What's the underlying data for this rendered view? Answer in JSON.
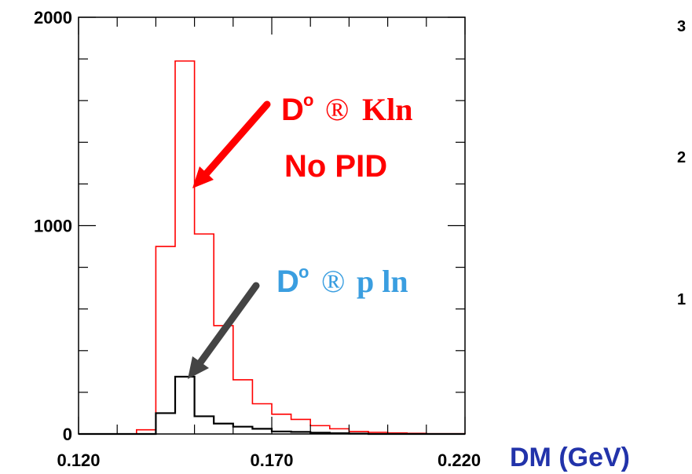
{
  "chart_data": {
    "type": "bar",
    "title": "",
    "xlabel": "DM (GeV)",
    "ylabel": "",
    "xlim": [
      0.12,
      0.22
    ],
    "ylim": [
      0,
      2000
    ],
    "x_tick_labels": [
      "0.120",
      "0.170",
      "0.220"
    ],
    "y_tick_labels": [
      "0",
      "1000",
      "2000"
    ],
    "bin_edges": [
      0.12,
      0.125,
      0.13,
      0.135,
      0.14,
      0.145,
      0.15,
      0.155,
      0.16,
      0.165,
      0.17,
      0.175,
      0.18,
      0.185,
      0.19,
      0.195,
      0.2,
      0.205,
      0.21,
      0.215,
      0.22
    ],
    "series": [
      {
        "name": "D0 → Kln, No PID",
        "color": "#ff0000",
        "values": [
          0,
          0,
          0,
          20,
          900,
          1790,
          960,
          520,
          260,
          145,
          95,
          70,
          40,
          25,
          12,
          8,
          5,
          3,
          1,
          1
        ]
      },
      {
        "name": "D0 → πln",
        "color": "#000000",
        "values": [
          0,
          0,
          0,
          0,
          100,
          275,
          85,
          50,
          35,
          25,
          12,
          10,
          6,
          4,
          2,
          0,
          0,
          0,
          0,
          0
        ]
      }
    ],
    "annotations": {
      "red_line1": "D",
      "red_sup1": "o",
      "red_arrow1": "®",
      "red_tail1": "Kln",
      "red_line2": "No PID",
      "blue_line1": "D",
      "blue_sup1": "o",
      "blue_arrow1": "®",
      "blue_tail1": "p ln"
    },
    "right_partial_ticks": [
      "3",
      "2",
      "1"
    ],
    "grid": false
  }
}
